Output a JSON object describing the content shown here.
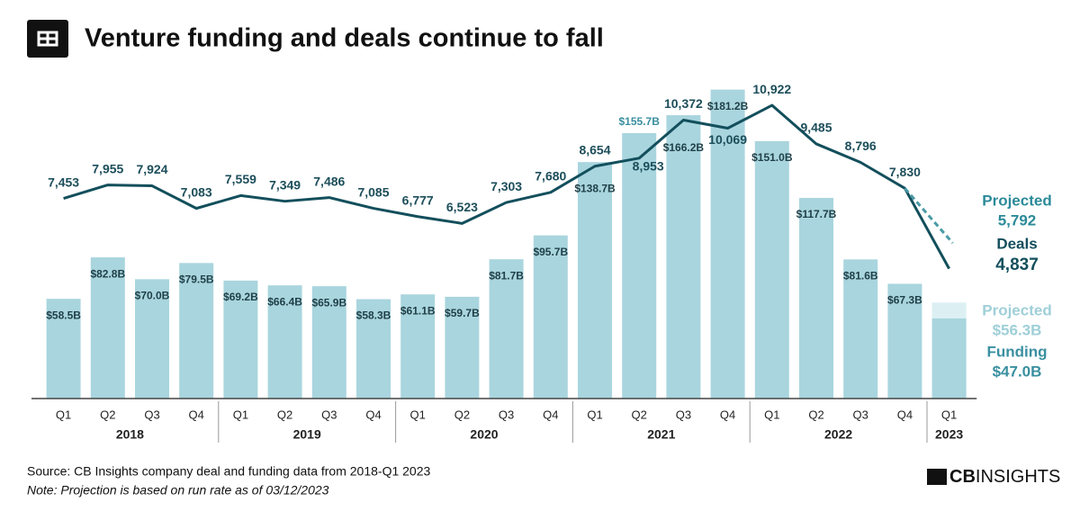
{
  "chart_data": {
    "type": "bar_line",
    "title": "Venture funding and deals continue to fall",
    "categories": [
      "Q1",
      "Q2",
      "Q3",
      "Q4",
      "Q1",
      "Q2",
      "Q3",
      "Q4",
      "Q1",
      "Q2",
      "Q3",
      "Q4",
      "Q1",
      "Q2",
      "Q3",
      "Q4",
      "Q1",
      "Q2",
      "Q3",
      "Q4",
      "Q1"
    ],
    "years": [
      "2018",
      "2019",
      "2020",
      "2021",
      "2022",
      "2023"
    ],
    "series": [
      {
        "name": "Funding",
        "color": "#a9d5de",
        "values": [
          58.5,
          82.8,
          70.0,
          79.5,
          69.2,
          66.4,
          65.9,
          58.3,
          61.1,
          59.7,
          81.7,
          95.7,
          138.7,
          155.7,
          166.2,
          181.2,
          151.0,
          117.7,
          81.6,
          67.3,
          47.0
        ],
        "value_labels": [
          "$58.5B",
          "$82.8B",
          "$70.0B",
          "$79.5B",
          "$69.2B",
          "$66.4B",
          "$65.9B",
          "$58.3B",
          "$61.1B",
          "$59.7B",
          "$81.7B",
          "$95.7B",
          "$138.7B",
          "$155.7B",
          "$166.2B",
          "$181.2B",
          "$151.0B",
          "$117.7B",
          "$81.6B",
          "$67.3B",
          "$47.0B"
        ]
      },
      {
        "name": "Deals",
        "color": "#134f5c",
        "axis": "y2",
        "values": [
          7453,
          7955,
          7924,
          7083,
          7559,
          7349,
          7486,
          7085,
          6777,
          6523,
          7303,
          7680,
          8654,
          8953,
          10372,
          10069,
          10922,
          9485,
          8796,
          7830,
          4837
        ],
        "value_labels": [
          "7,453",
          "7,955",
          "7,924",
          "7,083",
          "7,559",
          "7,349",
          "7,486",
          "7,085",
          "6,777",
          "6,523",
          "7,303",
          "7,680",
          "8,654",
          "8,953",
          "10,372",
          "10,069",
          "10,922",
          "9,485",
          "8,796",
          "7,830",
          "4,837"
        ]
      }
    ],
    "projection": {
      "label": "Projected",
      "deals": 5792,
      "deals_label": "5,792",
      "funding": 56.3,
      "funding_label": "$56.3B",
      "funding_color": "#dcf0f3"
    },
    "ylim": [
      0,
      200
    ],
    "y2lim": [
      0,
      12700
    ],
    "source": "Source: CB Insights company deal and funding data from 2018-Q1 2023",
    "note": "Note: Projection is based on run rate as of 03/12/2023",
    "brand": [
      "CB",
      "INSIGHTS"
    ]
  }
}
